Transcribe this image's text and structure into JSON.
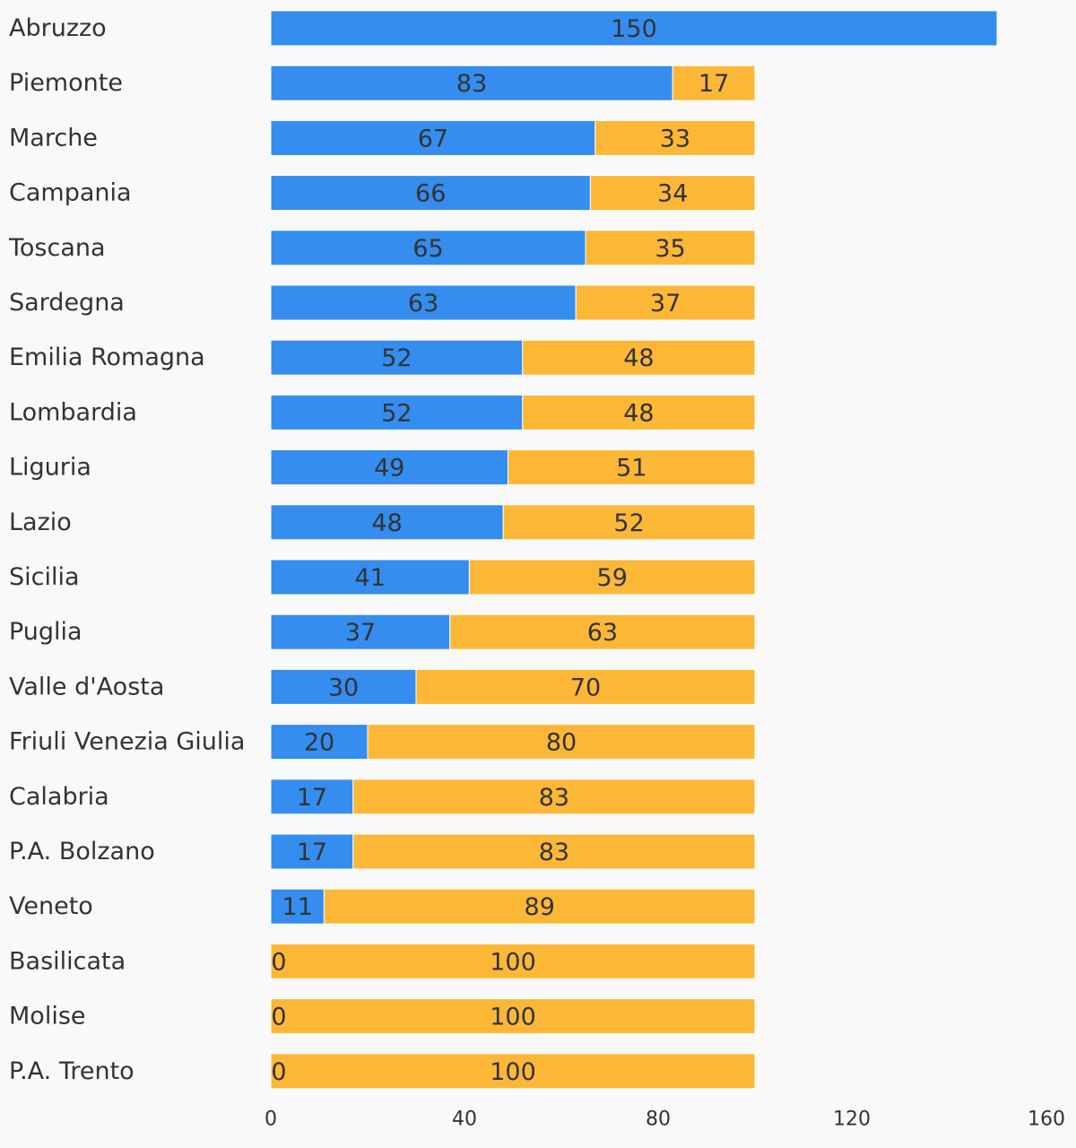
{
  "colors": {
    "background": "#f9f9f9",
    "series1": "#348def",
    "series2": "#fdb737",
    "text": "#333333"
  },
  "chart_data": {
    "type": "bar",
    "orientation": "horizontal",
    "stacked": true,
    "categories": [
      "Abruzzo",
      "Piemonte",
      "Marche",
      "Campania",
      "Toscana",
      "Sardegna",
      "Emilia Romagna",
      "Lombardia",
      "Liguria",
      "Lazio",
      "Sicilia",
      "Puglia",
      "Valle d'Aosta",
      "Friuli Venezia Giulia",
      "Calabria",
      "P.A. Bolzano",
      "Veneto",
      "Basilicata",
      "Molise",
      "P.A. Trento"
    ],
    "series": [
      {
        "color": "#348def",
        "values": [
          150,
          83,
          67,
          66,
          65,
          63,
          52,
          52,
          49,
          48,
          41,
          37,
          30,
          20,
          17,
          17,
          11,
          0,
          0,
          0
        ]
      },
      {
        "color": "#fdb737",
        "values": [
          null,
          17,
          33,
          34,
          35,
          37,
          48,
          48,
          51,
          52,
          59,
          63,
          70,
          80,
          83,
          83,
          89,
          100,
          100,
          100
        ]
      }
    ],
    "xlim": [
      0,
      160
    ],
    "xticks": [
      "0",
      "40",
      "80",
      "120",
      "160"
    ],
    "grid": false,
    "legend": "none"
  }
}
